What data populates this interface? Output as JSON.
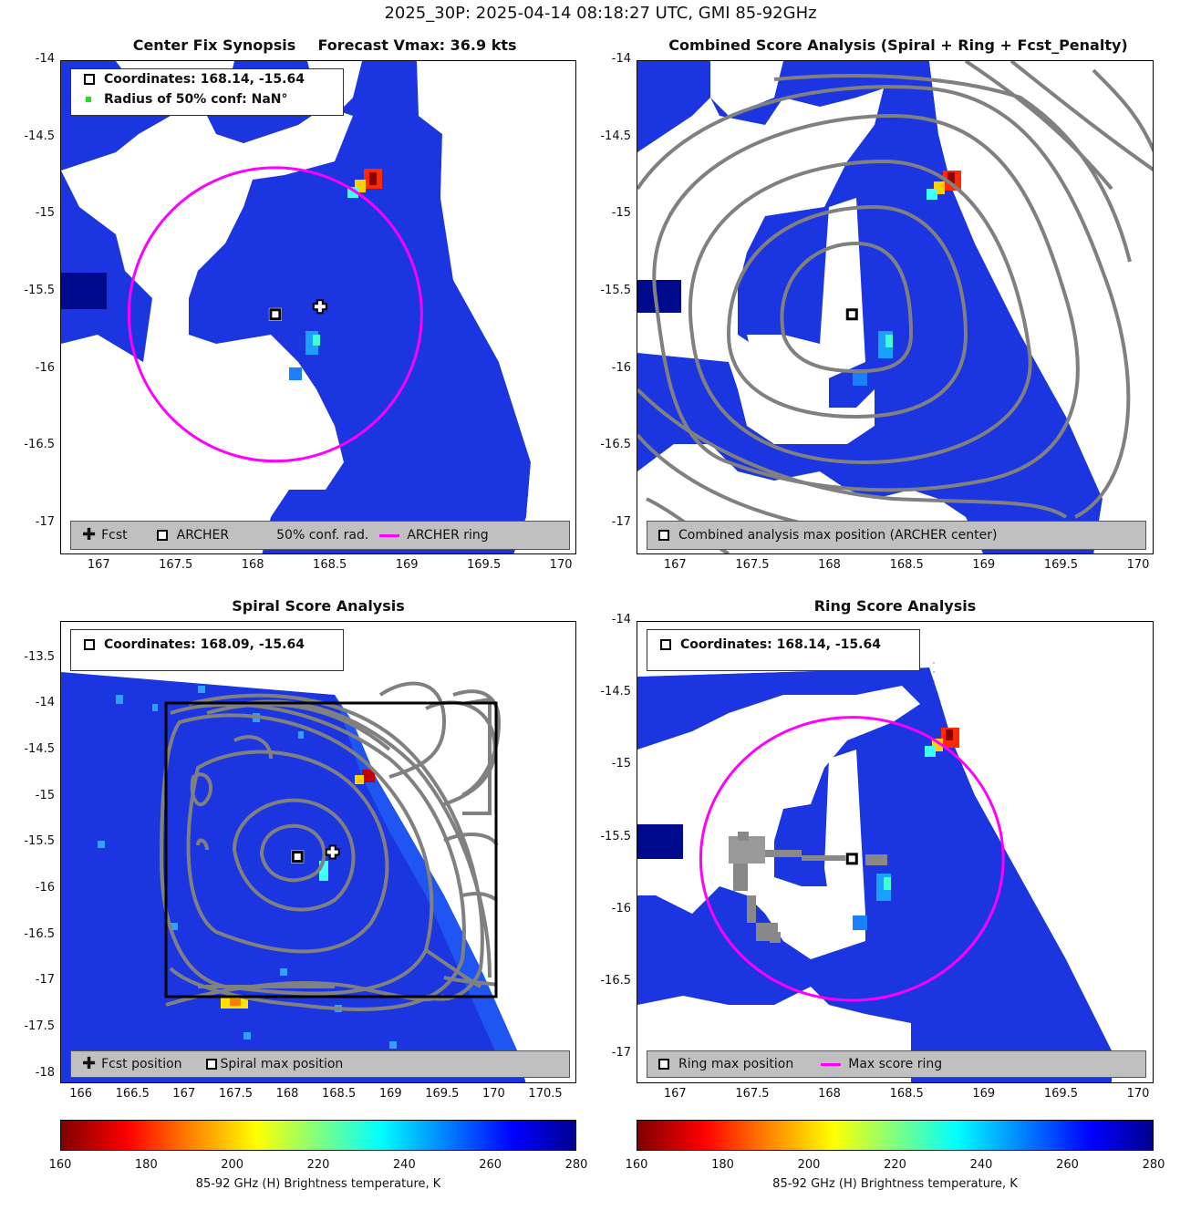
{
  "suptitle": "2025_30P: 2025-04-14 08:18:27 UTC, GMI 85-92GHz",
  "colors": {
    "ring": "#ff00ff",
    "contour": "#808080",
    "ocean_blue": "#1b35e0",
    "legend_bg": "#c0c0c0"
  },
  "panels": [
    {
      "title_left": "Center Fix Synopsis",
      "title_right": "Forecast Vmax: 36.9 kts",
      "legend_top": [
        "Coordinates: 168.14, -15.64",
        "Radius of 50% conf: NaN°"
      ],
      "legend_bottom": [
        "Fcst",
        "ARCHER",
        "50% conf. rad.",
        "ARCHER ring"
      ]
    },
    {
      "title": "Combined Score Analysis (Spiral + Ring + Fcst_Penalty)",
      "legend_bottom": [
        "Combined analysis max position (ARCHER center)"
      ]
    },
    {
      "title": "Spiral Score Analysis",
      "legend_top": [
        "Coordinates: 168.09, -15.64"
      ],
      "legend_bottom": [
        "Fcst position",
        "Spiral max position"
      ]
    },
    {
      "title": "Ring Score Analysis",
      "legend_top": [
        "Coordinates: 168.14, -15.64"
      ],
      "legend_bottom": [
        "Ring max position",
        "Max score ring"
      ]
    }
  ],
  "chart_data": [
    {
      "type": "heatmap",
      "title": "Center Fix Synopsis",
      "xlim": [
        166.75,
        170.1
      ],
      "ylim": [
        -17.2,
        -14.0
      ],
      "xticks": [
        "167",
        "167.5",
        "168",
        "168.5",
        "169",
        "169.5",
        "170"
      ],
      "yticks": [
        "-14",
        "-14.5",
        "-15",
        "-15.5",
        "-16",
        "-16.5",
        "-17"
      ],
      "archer_center": [
        168.14,
        -15.64
      ],
      "forecast_position": [
        168.43,
        -15.59
      ],
      "ring_radius_deg": 0.95,
      "annotation": "Forecast Vmax: 36.9 kts"
    },
    {
      "type": "heatmap",
      "title": "Combined Score Analysis (Spiral + Ring + Fcst_Penalty)",
      "xlim": [
        166.75,
        170.1
      ],
      "ylim": [
        -17.2,
        -14.0
      ],
      "xticks": [
        "167",
        "167.5",
        "168",
        "168.5",
        "169",
        "169.5",
        "170"
      ],
      "yticks": [
        "-14",
        "-14.5",
        "-15",
        "-15.5",
        "-16",
        "-16.5",
        "-17"
      ],
      "max_position": [
        168.14,
        -15.64
      ]
    },
    {
      "type": "heatmap",
      "title": "Spiral Score Analysis",
      "xlim": [
        165.8,
        170.8
      ],
      "ylim": [
        -18.1,
        -13.1
      ],
      "xticks": [
        "166",
        "166.5",
        "167",
        "167.5",
        "168",
        "168.5",
        "169",
        "169.5",
        "170",
        "170.5"
      ],
      "yticks": [
        "-13.5",
        "-14",
        "-14.5",
        "-15",
        "-15.5",
        "-16",
        "-16.5",
        "-17",
        "-17.5",
        "-18"
      ],
      "spiral_max_position": [
        168.09,
        -15.64
      ],
      "forecast_position": [
        168.43,
        -15.59
      ],
      "search_box": {
        "x": [
          166.75,
          170.05
        ],
        "y": [
          -17.17,
          -13.97
        ]
      }
    },
    {
      "type": "heatmap",
      "title": "Ring Score Analysis",
      "xlim": [
        166.75,
        170.1
      ],
      "ylim": [
        -17.2,
        -14.0
      ],
      "xticks": [
        "167",
        "167.5",
        "168",
        "168.5",
        "169",
        "169.5",
        "170"
      ],
      "yticks": [
        "-14",
        "-14.5",
        "-15",
        "-15.5",
        "-16",
        "-16.5",
        "-17"
      ],
      "ring_max_position": [
        168.14,
        -15.64
      ],
      "ring_radius_deg": 0.98
    }
  ],
  "colorbar": {
    "min": 160,
    "max": 280,
    "ticks": [
      "160",
      "180",
      "200",
      "220",
      "240",
      "260",
      "280"
    ],
    "label": "85-92 GHz (H) Brightness temperature, K"
  }
}
